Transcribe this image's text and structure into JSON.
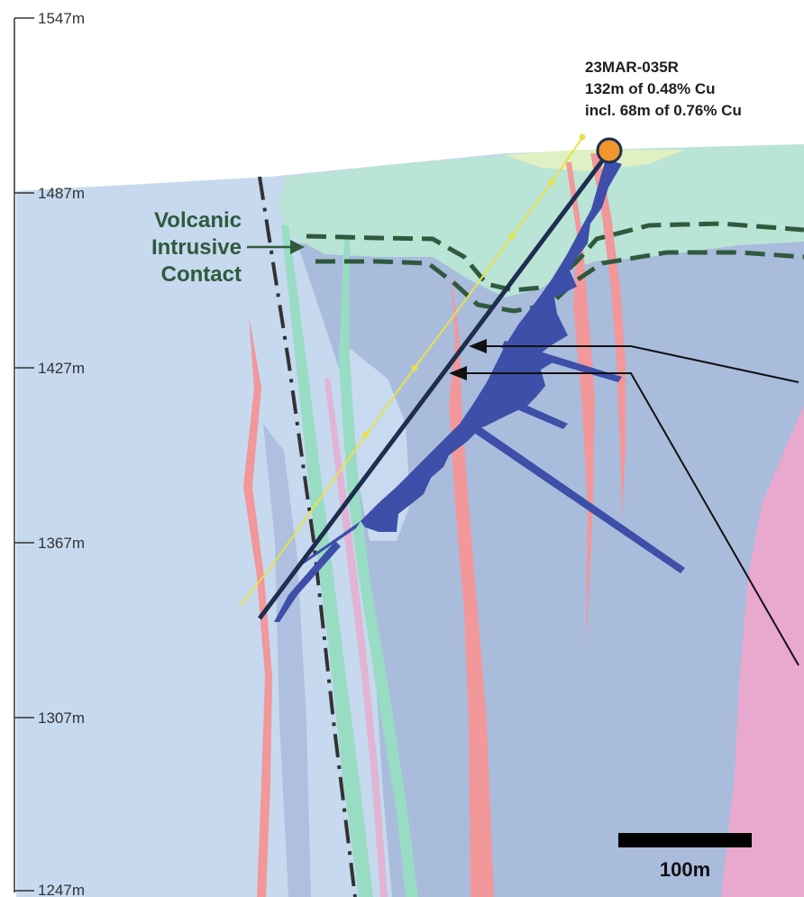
{
  "elevation_axis": {
    "ticks": [
      "1547m",
      "1487m",
      "1427m",
      "1367m",
      "1307m",
      "1247m"
    ]
  },
  "drillhole": {
    "id": "23MAR-035R",
    "intercept": "132m of 0.48% Cu",
    "including": "incl. 68m of 0.76% Cu"
  },
  "contact_label": {
    "line1": "Volcanic",
    "line2": "Intrusive",
    "line3": "Contact"
  },
  "scale_bar": {
    "label": "100m"
  },
  "colors": {
    "background_unit": "#c6d9ee",
    "intrusive_unit": "#a9bcdc",
    "volcanic_cap": "#b9e4d6",
    "dyke_red": "#f2979a",
    "dyke_green": "#98dcc3",
    "pink_unit": "#e9a9cf",
    "assay_bars": "#3d4fa8",
    "collar": "#f0962c",
    "contact_line": "#2f5a3d",
    "drill_trace": "#1d2e4f"
  }
}
